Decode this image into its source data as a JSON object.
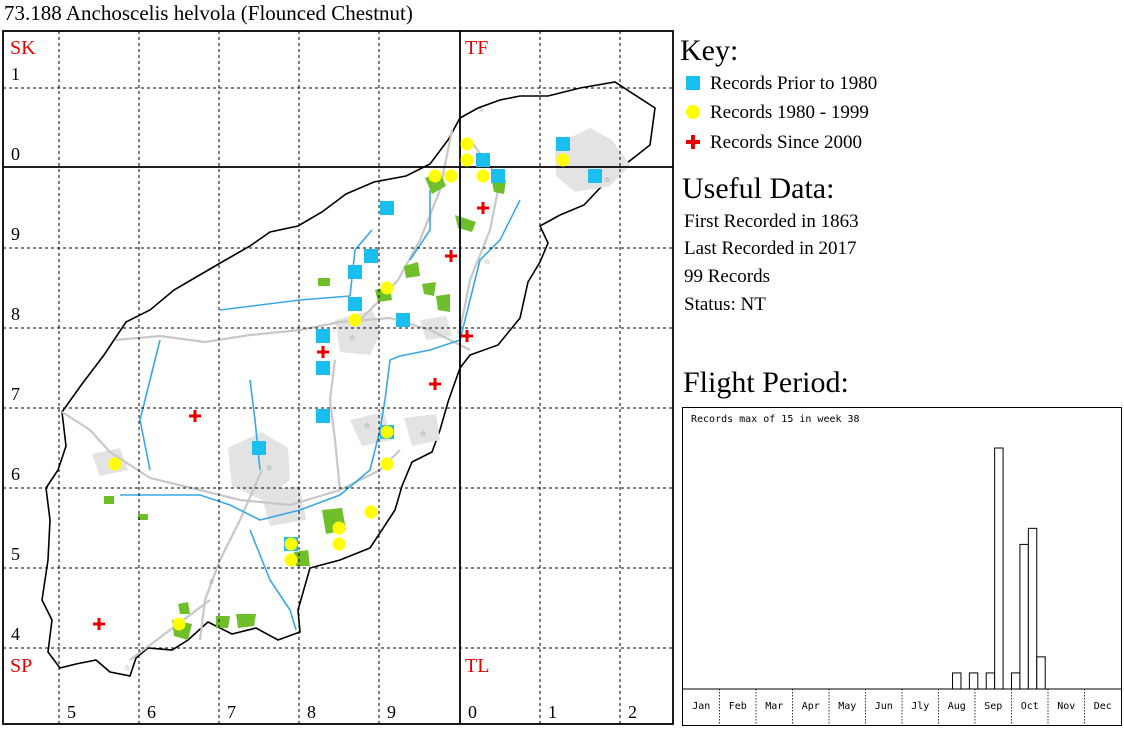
{
  "title": "73.188 Anchoscelis helvola (Flounced Chestnut)",
  "map": {
    "square_labels": [
      "SK",
      "TF",
      "SP",
      "TL"
    ],
    "row_labels": [
      "1",
      "0",
      "9",
      "8",
      "7",
      "6",
      "5",
      "4"
    ],
    "col_labels": [
      "5",
      "6",
      "7",
      "8",
      "9",
      "0",
      "1",
      "2"
    ],
    "colors": {
      "label_red": "#e80000",
      "river": "#3aa7e8",
      "road": "#c8c8c8",
      "wood": "#6fbf2a",
      "border": "#000000"
    }
  },
  "key": {
    "title": "Key:",
    "items": [
      {
        "label": "Records Prior to 1980",
        "symbol": "square",
        "color": "#19bff0"
      },
      {
        "label": "Records 1980 - 1999",
        "symbol": "circle",
        "color": "#ffff00"
      },
      {
        "label": "Records Since 2000",
        "symbol": "cross",
        "color": "#e80000"
      }
    ]
  },
  "useful_data": {
    "title": "Useful Data:",
    "first_recorded": "First Recorded in 1863",
    "last_recorded": "Last Recorded in 2017",
    "records": "99 Records",
    "status": "Status: NT"
  },
  "flight_period": {
    "title": "Flight Period:",
    "caption": "Records max of 15 in week 38"
  },
  "chart_data": {
    "type": "bar",
    "title": "",
    "xlabel": "",
    "ylabel": "",
    "months": [
      "Jan",
      "Feb",
      "Mar",
      "Apr",
      "May",
      "Jun",
      "Jly",
      "Aug",
      "Sep",
      "Oct",
      "Nov",
      "Dec"
    ],
    "week_axis_range": [
      1,
      52
    ],
    "ylim": [
      0,
      15
    ],
    "weeks": [
      33,
      35,
      37,
      38,
      40,
      41,
      42,
      43
    ],
    "values": [
      1,
      1,
      1,
      15,
      1,
      9,
      10,
      2
    ]
  }
}
